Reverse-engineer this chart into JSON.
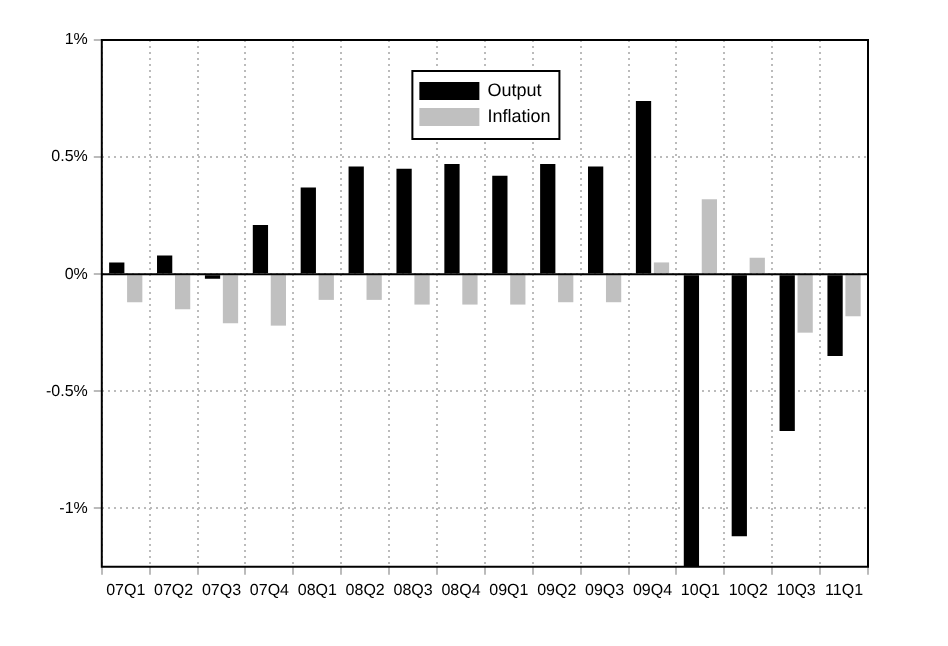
{
  "chart_data": {
    "type": "bar",
    "categories": [
      "07Q1",
      "07Q2",
      "07Q3",
      "07Q4",
      "08Q1",
      "08Q2",
      "08Q3",
      "08Q4",
      "09Q1",
      "09Q2",
      "09Q3",
      "09Q4",
      "10Q1",
      "10Q2",
      "10Q3",
      "11Q1"
    ],
    "series": [
      {
        "name": "Output",
        "color": "#000000",
        "values": [
          0.05,
          0.08,
          -0.02,
          0.21,
          0.37,
          0.46,
          0.45,
          0.47,
          0.42,
          0.47,
          0.46,
          0.74,
          -1.25,
          -1.12,
          -0.67,
          -0.35
        ]
      },
      {
        "name": "Inflation",
        "color": "#c0c0c0",
        "values": [
          -0.12,
          -0.15,
          -0.21,
          -0.22,
          -0.11,
          -0.11,
          -0.13,
          -0.13,
          -0.13,
          -0.12,
          -0.12,
          0.05,
          0.32,
          0.07,
          -0.25,
          -0.18
        ]
      }
    ],
    "ylim": [
      -1.25,
      1
    ],
    "yticks": [
      {
        "value": -1,
        "label": "-1%"
      },
      {
        "value": -0.5,
        "label": "-0.5%"
      },
      {
        "value": 0,
        "label": "0%"
      },
      {
        "value": 0.5,
        "label": "0.5%"
      },
      {
        "value": 1,
        "label": "1%"
      }
    ],
    "grid": true,
    "legend": "top"
  }
}
